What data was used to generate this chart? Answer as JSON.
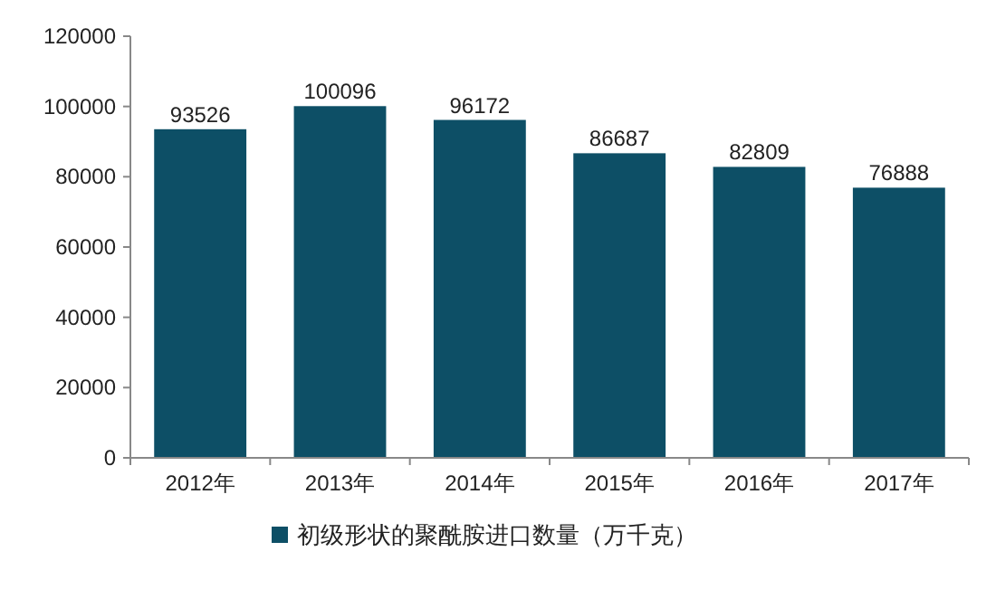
{
  "chart_data": {
    "type": "bar",
    "categories": [
      "2012年",
      "2013年",
      "2014年",
      "2015年",
      "2016年",
      "2017年"
    ],
    "series": [
      {
        "name": "初级形状的聚酰胺进口数量（万千克）",
        "color": "#0d4f66",
        "values": [
          93526,
          100096,
          96172,
          86687,
          82809,
          76888
        ]
      }
    ],
    "ylim": [
      0,
      120000
    ],
    "yticks": [
      0,
      20000,
      40000,
      60000,
      80000,
      100000,
      120000
    ],
    "data_labels": true,
    "legend": "bottom",
    "grid": false
  }
}
